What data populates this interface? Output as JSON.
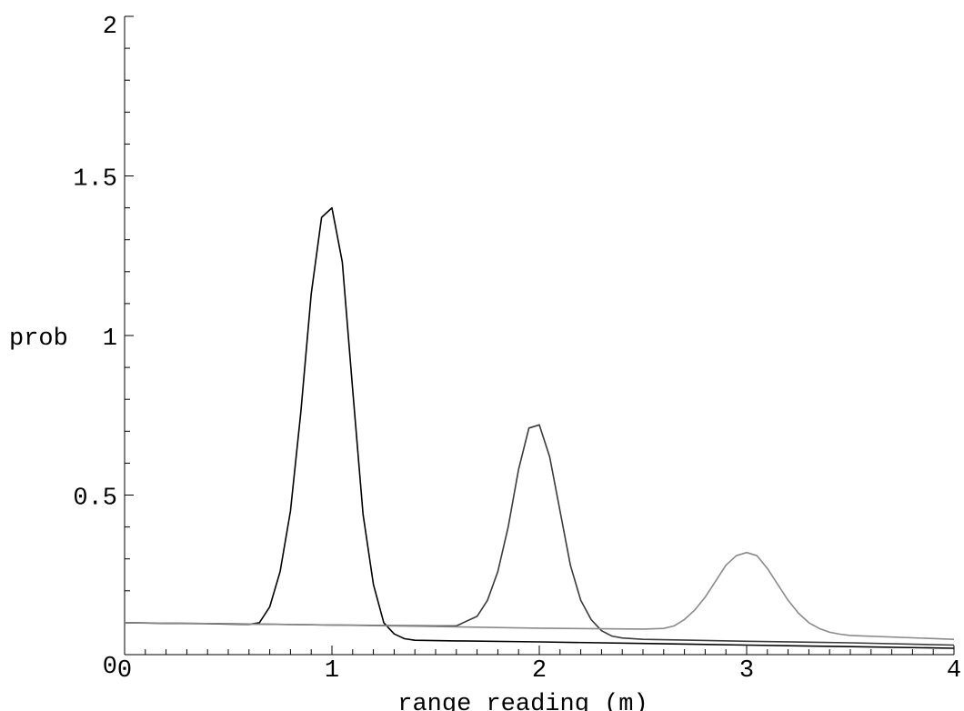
{
  "chart_data": {
    "type": "line",
    "title": "",
    "xlabel": "range reading (m)",
    "ylabel": "prob",
    "xlim": [
      0,
      4
    ],
    "ylim": [
      0,
      2
    ],
    "x_ticks": [
      "0",
      "1",
      "2",
      "3",
      "4"
    ],
    "y_ticks": [
      "0",
      "0.5",
      "1",
      "1.5",
      "2"
    ],
    "grid": false,
    "legend": "none",
    "series": [
      {
        "color": "#000000",
        "x": [
          0,
          0.2,
          0.4,
          0.6,
          0.65,
          0.7,
          0.75,
          0.8,
          0.85,
          0.9,
          0.95,
          1.0,
          1.05,
          1.1,
          1.15,
          1.2,
          1.25,
          1.3,
          1.35,
          1.4,
          1.6,
          2.0,
          2.5,
          3.0,
          3.5,
          4.0
        ],
        "values": [
          0.1,
          0.098,
          0.097,
          0.095,
          0.1,
          0.15,
          0.26,
          0.45,
          0.76,
          1.13,
          1.37,
          1.4,
          1.23,
          0.83,
          0.44,
          0.22,
          0.1,
          0.065,
          0.05,
          0.045,
          0.043,
          0.04,
          0.035,
          0.03,
          0.025,
          0.02
        ]
      },
      {
        "color": "#3a3a3a",
        "x": [
          0,
          0.5,
          1.0,
          1.5,
          1.6,
          1.7,
          1.75,
          1.8,
          1.85,
          1.9,
          1.95,
          2.0,
          2.05,
          2.1,
          2.15,
          2.2,
          2.25,
          2.3,
          2.35,
          2.4,
          2.5,
          3.0,
          3.5,
          4.0
        ],
        "values": [
          0.1,
          0.097,
          0.093,
          0.09,
          0.09,
          0.12,
          0.17,
          0.26,
          0.4,
          0.58,
          0.71,
          0.72,
          0.62,
          0.45,
          0.28,
          0.17,
          0.11,
          0.075,
          0.058,
          0.052,
          0.048,
          0.042,
          0.037,
          0.03
        ]
      },
      {
        "color": "#8a8a8a",
        "x": [
          0,
          0.5,
          1.0,
          1.5,
          2.0,
          2.5,
          2.6,
          2.65,
          2.7,
          2.75,
          2.8,
          2.85,
          2.9,
          2.95,
          3.0,
          3.05,
          3.1,
          3.15,
          3.2,
          3.25,
          3.3,
          3.35,
          3.4,
          3.45,
          3.5,
          4.0
        ],
        "values": [
          0.1,
          0.097,
          0.093,
          0.088,
          0.083,
          0.08,
          0.082,
          0.09,
          0.11,
          0.14,
          0.18,
          0.23,
          0.28,
          0.31,
          0.32,
          0.31,
          0.27,
          0.22,
          0.17,
          0.13,
          0.1,
          0.082,
          0.07,
          0.064,
          0.06,
          0.048
        ]
      }
    ]
  }
}
